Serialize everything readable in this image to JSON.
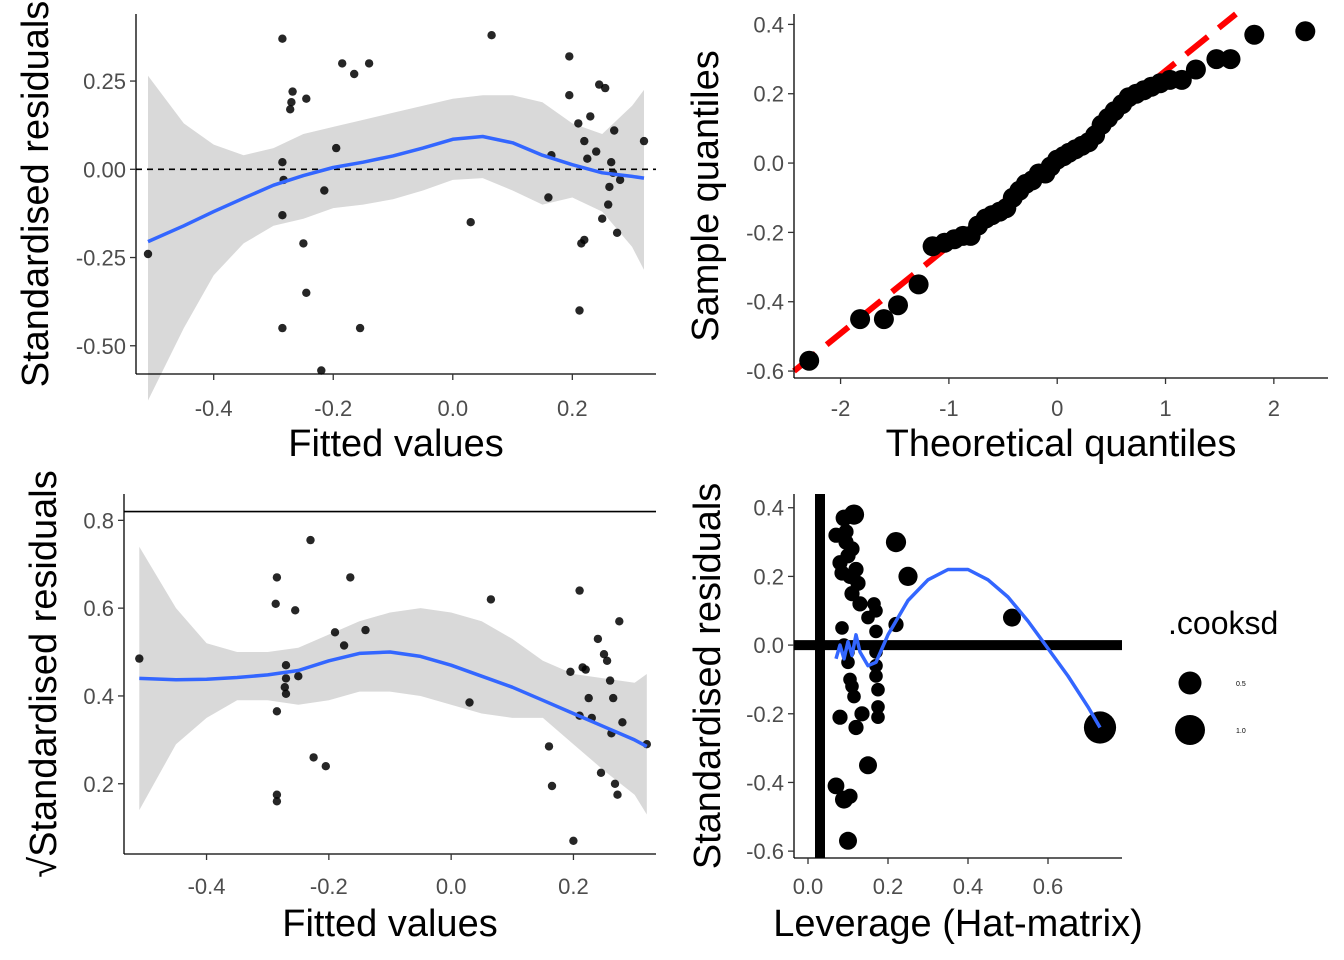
{
  "chart_data": [
    {
      "id": "p1",
      "type": "scatter",
      "xlabel": "Fitted values",
      "ylabel": "Standardised residuals",
      "xlim": [
        -0.53,
        0.34
      ],
      "ylim": [
        -0.58,
        0.44
      ],
      "xticks": [
        -0.4,
        -0.2,
        0.0,
        0.2
      ],
      "xtick_labels": [
        "-0.4",
        "-0.2",
        "0.0",
        "0.2"
      ],
      "yticks": [
        -0.5,
        -0.25,
        0.0,
        0.25
      ],
      "ytick_labels": [
        "-0.50",
        "-0.25",
        "0.00",
        "0.25"
      ],
      "hline": {
        "y": 0,
        "style": "dashed"
      },
      "points": [
        [
          -0.51,
          -0.24
        ],
        [
          -0.285,
          0.37
        ],
        [
          -0.285,
          0.02
        ],
        [
          -0.285,
          -0.13
        ],
        [
          -0.283,
          -0.03
        ],
        [
          -0.285,
          -0.45
        ],
        [
          -0.272,
          0.17
        ],
        [
          -0.27,
          0.19
        ],
        [
          -0.268,
          0.22
        ],
        [
          -0.25,
          -0.21
        ],
        [
          -0.245,
          0.2
        ],
        [
          -0.245,
          -0.35
        ],
        [
          -0.22,
          -0.57
        ],
        [
          -0.215,
          -0.06
        ],
        [
          -0.195,
          0.06
        ],
        [
          -0.185,
          0.3
        ],
        [
          -0.165,
          0.27
        ],
        [
          -0.155,
          -0.45
        ],
        [
          -0.14,
          0.3
        ],
        [
          0.03,
          -0.15
        ],
        [
          0.065,
          0.38
        ],
        [
          0.16,
          -0.08
        ],
        [
          0.165,
          0.04
        ],
        [
          0.195,
          0.32
        ],
        [
          0.195,
          0.21
        ],
        [
          0.21,
          0.13
        ],
        [
          0.212,
          -0.4
        ],
        [
          0.215,
          -0.21
        ],
        [
          0.22,
          0.08
        ],
        [
          0.22,
          -0.2
        ],
        [
          0.225,
          0.03
        ],
        [
          0.23,
          0.15
        ],
        [
          0.24,
          0.05
        ],
        [
          0.245,
          0.24
        ],
        [
          0.25,
          -0.14
        ],
        [
          0.255,
          0.23
        ],
        [
          0.26,
          -0.1
        ],
        [
          0.262,
          -0.05
        ],
        [
          0.265,
          0.02
        ],
        [
          0.268,
          -0.01
        ],
        [
          0.27,
          0.11
        ],
        [
          0.275,
          -0.18
        ],
        [
          0.28,
          -0.03
        ],
        [
          0.32,
          0.08
        ]
      ],
      "smooth": {
        "x": [
          -0.51,
          -0.45,
          -0.4,
          -0.35,
          -0.3,
          -0.25,
          -0.2,
          -0.15,
          -0.1,
          -0.05,
          0.0,
          0.05,
          0.1,
          0.15,
          0.2,
          0.25,
          0.3,
          0.32
        ],
        "y": [
          -0.205,
          -0.16,
          -0.12,
          -0.082,
          -0.045,
          -0.018,
          0.005,
          0.02,
          0.038,
          0.06,
          0.085,
          0.093,
          0.075,
          0.04,
          0.013,
          -0.01,
          -0.02,
          -0.025
        ],
        "lower": [
          -0.655,
          -0.45,
          -0.3,
          -0.21,
          -0.16,
          -0.14,
          -0.11,
          -0.1,
          -0.085,
          -0.06,
          -0.03,
          -0.025,
          -0.06,
          -0.1,
          -0.08,
          -0.12,
          -0.22,
          -0.285
        ],
        "upper": [
          0.265,
          0.13,
          0.07,
          0.04,
          0.06,
          0.1,
          0.12,
          0.14,
          0.16,
          0.18,
          0.2,
          0.21,
          0.21,
          0.19,
          0.13,
          0.1,
          0.18,
          0.225
        ]
      }
    },
    {
      "id": "p2",
      "type": "scatter",
      "xlabel": "Theoretical quantiles",
      "ylabel": "Sample quantiles",
      "xlim": [
        -2.43,
        2.5
      ],
      "ylim": [
        -0.62,
        0.43
      ],
      "xticks": [
        -2,
        -1,
        0,
        1,
        2
      ],
      "xtick_labels": [
        "-2",
        "-1",
        "0",
        "1",
        "2"
      ],
      "yticks": [
        -0.6,
        -0.4,
        -0.2,
        0.0,
        0.2,
        0.4
      ],
      "ytick_labels": [
        "-0.6",
        "-0.4",
        "-0.2",
        "0.0",
        "0.2",
        "0.4"
      ],
      "ref_line": {
        "x": [
          -2.43,
          1.65
        ],
        "y": [
          -0.6,
          0.43
        ],
        "color": "#ff0000",
        "style": "dashed"
      },
      "points": [
        [
          -2.29,
          -0.57
        ],
        [
          -1.82,
          -0.45
        ],
        [
          -1.6,
          -0.45
        ],
        [
          -1.47,
          -0.41
        ],
        [
          -1.28,
          -0.35
        ],
        [
          -1.15,
          -0.24
        ],
        [
          -1.04,
          -0.23
        ],
        [
          -0.95,
          -0.22
        ],
        [
          -0.87,
          -0.21
        ],
        [
          -0.8,
          -0.21
        ],
        [
          -0.73,
          -0.18
        ],
        [
          -0.66,
          -0.16
        ],
        [
          -0.6,
          -0.15
        ],
        [
          -0.53,
          -0.14
        ],
        [
          -0.47,
          -0.13
        ],
        [
          -0.41,
          -0.1
        ],
        [
          -0.35,
          -0.08
        ],
        [
          -0.29,
          -0.06
        ],
        [
          -0.23,
          -0.05
        ],
        [
          -0.17,
          -0.03
        ],
        [
          -0.11,
          -0.03
        ],
        [
          -0.06,
          -0.01
        ],
        [
          0.0,
          0.01
        ],
        [
          0.06,
          0.02
        ],
        [
          0.11,
          0.03
        ],
        [
          0.17,
          0.04
        ],
        [
          0.23,
          0.05
        ],
        [
          0.29,
          0.06
        ],
        [
          0.35,
          0.08
        ],
        [
          0.41,
          0.11
        ],
        [
          0.47,
          0.13
        ],
        [
          0.53,
          0.15
        ],
        [
          0.6,
          0.17
        ],
        [
          0.66,
          0.19
        ],
        [
          0.73,
          0.2
        ],
        [
          0.8,
          0.21
        ],
        [
          0.87,
          0.22
        ],
        [
          0.95,
          0.23
        ],
        [
          1.04,
          0.24
        ],
        [
          1.15,
          0.24
        ],
        [
          1.28,
          0.27
        ],
        [
          1.47,
          0.3
        ],
        [
          1.6,
          0.3
        ],
        [
          1.82,
          0.37
        ],
        [
          2.29,
          0.38
        ]
      ]
    },
    {
      "id": "p3",
      "type": "scatter",
      "xlabel": "Fitted values",
      "ylabel": "Standardised residuals",
      "ylabel_prefix": "√",
      "xlim": [
        -0.535,
        0.335
      ],
      "ylim": [
        0.04,
        0.86
      ],
      "xticks": [
        -0.4,
        -0.2,
        0.0,
        0.2
      ],
      "xtick_labels": [
        "-0.4",
        "-0.2",
        "0.0",
        "0.2"
      ],
      "yticks": [
        0.2,
        0.4,
        0.6,
        0.8
      ],
      "ytick_labels": [
        "0.2",
        "0.4",
        "0.6",
        "0.8"
      ],
      "hline": {
        "y": 0.82,
        "style": "solid"
      },
      "points": [
        [
          -0.51,
          0.485
        ],
        [
          -0.285,
          0.67
        ],
        [
          -0.287,
          0.61
        ],
        [
          -0.285,
          0.365
        ],
        [
          -0.285,
          0.175
        ],
        [
          -0.285,
          0.16
        ],
        [
          -0.27,
          0.47
        ],
        [
          -0.27,
          0.44
        ],
        [
          -0.272,
          0.42
        ],
        [
          -0.27,
          0.405
        ],
        [
          -0.255,
          0.595
        ],
        [
          -0.25,
          0.445
        ],
        [
          -0.23,
          0.755
        ],
        [
          -0.225,
          0.26
        ],
        [
          -0.205,
          0.24
        ],
        [
          -0.19,
          0.545
        ],
        [
          -0.175,
          0.515
        ],
        [
          -0.165,
          0.67
        ],
        [
          -0.14,
          0.55
        ],
        [
          0.03,
          0.385
        ],
        [
          0.065,
          0.62
        ],
        [
          0.16,
          0.285
        ],
        [
          0.165,
          0.195
        ],
        [
          0.195,
          0.455
        ],
        [
          0.2,
          0.07
        ],
        [
          0.21,
          0.355
        ],
        [
          0.21,
          0.64
        ],
        [
          0.215,
          0.465
        ],
        [
          0.22,
          0.46
        ],
        [
          0.225,
          0.395
        ],
        [
          0.23,
          0.35
        ],
        [
          0.24,
          0.53
        ],
        [
          0.245,
          0.225
        ],
        [
          0.25,
          0.495
        ],
        [
          0.255,
          0.48
        ],
        [
          0.26,
          0.435
        ],
        [
          0.262,
          0.315
        ],
        [
          0.265,
          0.395
        ],
        [
          0.268,
          0.2
        ],
        [
          0.272,
          0.175
        ],
        [
          0.275,
          0.57
        ],
        [
          0.28,
          0.34
        ],
        [
          0.32,
          0.29
        ]
      ],
      "smooth": {
        "x": [
          -0.51,
          -0.45,
          -0.4,
          -0.35,
          -0.3,
          -0.25,
          -0.2,
          -0.15,
          -0.1,
          -0.05,
          0.0,
          0.05,
          0.1,
          0.15,
          0.2,
          0.25,
          0.3,
          0.32
        ],
        "y": [
          0.44,
          0.437,
          0.438,
          0.442,
          0.448,
          0.458,
          0.48,
          0.497,
          0.5,
          0.49,
          0.47,
          0.445,
          0.42,
          0.39,
          0.36,
          0.33,
          0.3,
          0.285
        ],
        "lower": [
          0.14,
          0.29,
          0.35,
          0.39,
          0.39,
          0.38,
          0.39,
          0.41,
          0.41,
          0.4,
          0.38,
          0.36,
          0.35,
          0.35,
          0.29,
          0.23,
          0.175,
          0.13
        ],
        "upper": [
          0.74,
          0.6,
          0.52,
          0.5,
          0.5,
          0.51,
          0.54,
          0.57,
          0.59,
          0.6,
          0.59,
          0.57,
          0.53,
          0.48,
          0.45,
          0.44,
          0.43,
          0.45
        ]
      }
    },
    {
      "id": "p4",
      "type": "scatter",
      "xlabel": "Leverage (Hat-matrix)",
      "ylabel": "Standardised residuals",
      "xlim": [
        -0.035,
        0.785
      ],
      "ylim": [
        -0.62,
        0.44
      ],
      "xticks": [
        0.0,
        0.2,
        0.4,
        0.6
      ],
      "xtick_labels": [
        "0.0",
        "0.2",
        "0.4",
        "0.6"
      ],
      "yticks": [
        -0.6,
        -0.4,
        -0.2,
        0.0,
        0.2,
        0.4
      ],
      "ytick_labels": [
        "-0.6",
        "-0.4",
        "-0.2",
        "0.0",
        "0.2",
        "0.4"
      ],
      "vline": {
        "x": 0.03
      },
      "hline": {
        "y": 0.0
      },
      "points": [
        [
          0.07,
          0.32
        ],
        [
          0.08,
          0.24
        ],
        [
          0.085,
          0.21
        ],
        [
          0.09,
          0.37
        ],
        [
          0.095,
          0.33
        ],
        [
          0.1,
          0.26
        ],
        [
          0.105,
          0.2
        ],
        [
          0.11,
          0.15
        ],
        [
          0.115,
          0.38
        ],
        [
          0.12,
          0.22
        ],
        [
          0.125,
          0.18
        ],
        [
          0.13,
          0.12
        ],
        [
          0.15,
          0.08
        ],
        [
          0.165,
          0.12
        ],
        [
          0.17,
          -0.02
        ],
        [
          0.17,
          0.04
        ],
        [
          0.17,
          -0.06
        ],
        [
          0.17,
          -0.09
        ],
        [
          0.175,
          -0.13
        ],
        [
          0.175,
          -0.18
        ],
        [
          0.175,
          -0.21
        ],
        [
          0.11,
          0.28
        ],
        [
          0.095,
          0.3
        ],
        [
          0.085,
          0.05
        ],
        [
          0.09,
          0.0
        ],
        [
          0.1,
          -0.02
        ],
        [
          0.1,
          -0.05
        ],
        [
          0.105,
          -0.1
        ],
        [
          0.11,
          -0.12
        ],
        [
          0.115,
          -0.15
        ],
        [
          0.08,
          -0.21
        ],
        [
          0.07,
          -0.41
        ],
        [
          0.09,
          -0.45
        ],
        [
          0.1,
          -0.57
        ],
        [
          0.12,
          -0.24
        ],
        [
          0.135,
          -0.2
        ],
        [
          0.15,
          -0.35
        ],
        [
          0.105,
          -0.44
        ],
        [
          0.17,
          0.1
        ],
        [
          0.22,
          0.3
        ],
        [
          0.22,
          0.06
        ],
        [
          0.25,
          0.2
        ],
        [
          0.51,
          0.08
        ],
        [
          0.73,
          -0.24
        ]
      ],
      "point_sizes": [
        0.15,
        0.15,
        0.15,
        0.2,
        0.15,
        0.15,
        0.15,
        0.15,
        0.35,
        0.15,
        0.15,
        0.15,
        0.1,
        0.1,
        0.1,
        0.1,
        0.1,
        0.1,
        0.1,
        0.1,
        0.1,
        0.15,
        0.15,
        0.1,
        0.1,
        0.1,
        0.1,
        0.1,
        0.1,
        0.1,
        0.15,
        0.2,
        0.25,
        0.25,
        0.15,
        0.15,
        0.25,
        0.15,
        0.1,
        0.35,
        0.15,
        0.3,
        0.25,
        1.2
      ],
      "smooth": {
        "x": [
          0.07,
          0.08,
          0.09,
          0.1,
          0.11,
          0.12,
          0.13,
          0.15,
          0.17,
          0.2,
          0.25,
          0.3,
          0.35,
          0.4,
          0.45,
          0.5,
          0.55,
          0.6,
          0.65,
          0.7,
          0.73
        ],
        "y": [
          -0.04,
          0.0,
          -0.04,
          0.01,
          -0.03,
          0.03,
          -0.02,
          -0.06,
          -0.05,
          0.03,
          0.13,
          0.19,
          0.22,
          0.22,
          0.19,
          0.14,
          0.07,
          -0.01,
          -0.09,
          -0.18,
          -0.24
        ]
      },
      "legend": {
        "title": ".cooksd",
        "entries": [
          {
            "label": "0.5",
            "size": 0.5
          },
          {
            "label": "1.0",
            "size": 1.0
          }
        ],
        "position": "right"
      }
    }
  ],
  "colors": {
    "point": "#000000",
    "smooth": "#3366ff",
    "ribbon": "#d9d9d9",
    "ref_line": "#ff0000"
  }
}
